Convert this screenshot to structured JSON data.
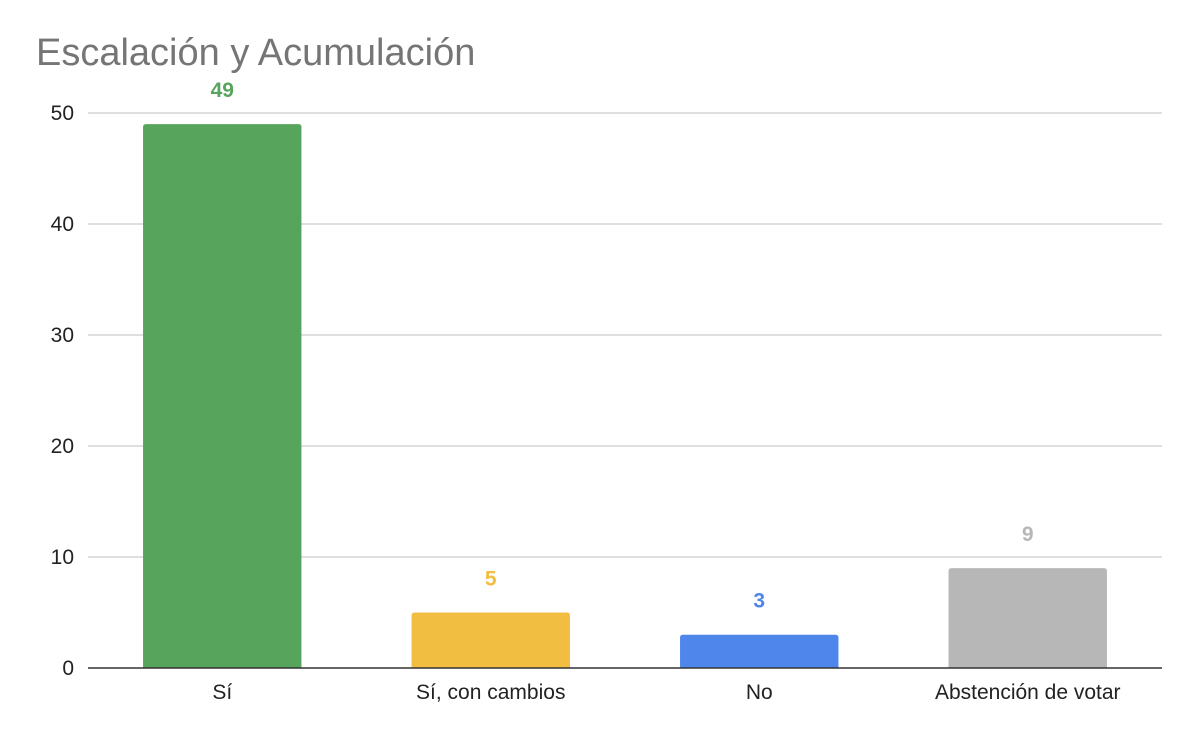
{
  "chart_data": {
    "type": "bar",
    "title": "Escalación y Acumulación",
    "xlabel": "",
    "ylabel": "",
    "categories": [
      "Sí",
      "Sí, con cambios",
      "No",
      "Abstención de votar"
    ],
    "values": [
      49,
      5,
      3,
      9
    ],
    "colors": [
      "#57a55c",
      "#f2be42",
      "#4f86ec",
      "#b7b7b7"
    ],
    "ylim": [
      0,
      50
    ],
    "yticks": [
      "0",
      "10",
      "20",
      "30",
      "40",
      "50"
    ],
    "grid": true,
    "legend": "none",
    "data_labels": true
  }
}
